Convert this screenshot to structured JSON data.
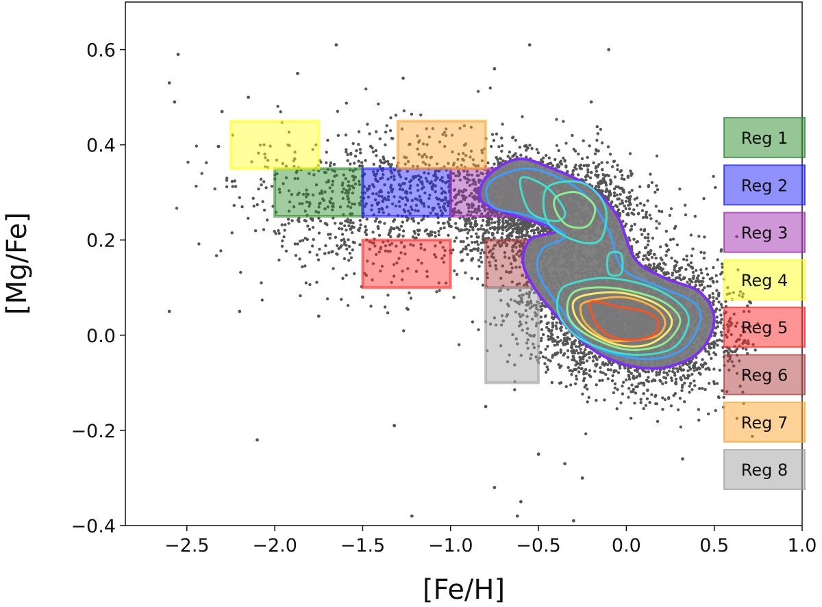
{
  "chart_data": {
    "type": "scatter",
    "title": "",
    "xlabel": "[Fe/H]",
    "ylabel": "[Mg/Fe]",
    "xlim": [
      -2.85,
      1.0
    ],
    "ylim": [
      -0.4,
      0.7
    ],
    "x_ticks": [
      -2.5,
      -2.0,
      -1.5,
      -1.0,
      -0.5,
      0.0,
      0.5,
      1.0
    ],
    "x_tick_labels": [
      "−2.5",
      "−2.0",
      "−1.5",
      "−1.0",
      "−0.5",
      "0.0",
      "0.5",
      "1.0"
    ],
    "y_ticks": [
      -0.4,
      -0.2,
      0.0,
      0.2,
      0.4,
      0.6
    ],
    "y_tick_labels": [
      "−0.4",
      "−0.2",
      "0.0",
      "0.2",
      "0.4",
      "0.6"
    ],
    "grid": false,
    "legend_position": "right",
    "scatter_color": "#555555",
    "scatter_main_cloud": {
      "center": [
        -0.3,
        0.2
      ],
      "spread": [
        0.45,
        0.15
      ],
      "count": 7000
    },
    "scatter_isolated_points": [
      [
        -2.55,
        0.59
      ],
      [
        -2.6,
        0.53
      ],
      [
        -2.57,
        0.49
      ],
      [
        -2.6,
        0.05
      ],
      [
        -2.1,
        -0.22
      ],
      [
        -1.87,
        0.55
      ],
      [
        -1.65,
        0.61
      ],
      [
        -1.32,
        -0.19
      ],
      [
        -1.27,
        0.54
      ],
      [
        -1.22,
        -0.38
      ],
      [
        -0.75,
        0.56
      ],
      [
        -0.7,
        0.03
      ],
      [
        -0.55,
        0.61
      ],
      [
        -0.5,
        -0.25
      ],
      [
        -0.62,
        -0.38
      ],
      [
        -0.2,
        0.49
      ],
      [
        -0.35,
        -0.27
      ],
      [
        -0.25,
        -0.3
      ],
      [
        -0.1,
        0.6
      ],
      [
        0.32,
        -0.26
      ],
      [
        -0.75,
        -0.32
      ],
      [
        -0.6,
        -0.35
      ],
      [
        -0.8,
        -0.15
      ],
      [
        -0.3,
        -0.39
      ],
      [
        -2.2,
        0.05
      ],
      [
        -1.75,
        0.04
      ],
      [
        -1.5,
        0.08
      ],
      [
        -2.3,
        0.47
      ],
      [
        -2.15,
        0.5
      ]
    ],
    "regions": [
      {
        "name": "Reg 1",
        "color": "#2e8b2e",
        "x": [
          -2.0,
          -1.5
        ],
        "y": [
          0.25,
          0.35
        ]
      },
      {
        "name": "Reg 2",
        "color": "#2222ff",
        "x": [
          -1.5,
          -1.0
        ],
        "y": [
          0.25,
          0.35
        ]
      },
      {
        "name": "Reg 3",
        "color": "#a030b0",
        "x": [
          -1.0,
          -0.5
        ],
        "y": [
          0.25,
          0.35
        ]
      },
      {
        "name": "Reg 4",
        "color": "#ffff22",
        "x": [
          -2.25,
          -1.75
        ],
        "y": [
          0.35,
          0.45
        ]
      },
      {
        "name": "Reg 5",
        "color": "#ff2a2a",
        "x": [
          -1.5,
          -1.0
        ],
        "y": [
          0.1,
          0.2
        ]
      },
      {
        "name": "Reg 6",
        "color": "#b04040",
        "x": [
          -0.8,
          -0.5
        ],
        "y": [
          0.1,
          0.2
        ]
      },
      {
        "name": "Reg 7",
        "color": "#ffa630",
        "x": [
          -1.3,
          -0.8
        ],
        "y": [
          0.35,
          0.45
        ]
      },
      {
        "name": "Reg 8",
        "color": "#a0a0a0",
        "x": [
          -0.8,
          -0.5
        ],
        "y": [
          -0.1,
          0.1
        ]
      }
    ],
    "density_contours": {
      "colors": [
        "#7b2ff7",
        "#3aa0ff",
        "#40e0d0",
        "#90ee90",
        "#f4ec6a",
        "#ffb040",
        "#ff5020"
      ],
      "fill": "#7a7a7a",
      "shapes": [
        {
          "level": 0,
          "color": "#7b2ff7",
          "points": [
            [
              -0.8,
              0.33
            ],
            [
              -0.62,
              0.37
            ],
            [
              -0.42,
              0.35
            ],
            [
              -0.2,
              0.31
            ],
            [
              -0.05,
              0.25
            ],
            [
              0.05,
              0.16
            ],
            [
              0.22,
              0.12
            ],
            [
              0.42,
              0.09
            ],
            [
              0.5,
              0.03
            ],
            [
              0.4,
              -0.04
            ],
            [
              0.15,
              -0.07
            ],
            [
              -0.15,
              -0.04
            ],
            [
              -0.42,
              0.05
            ],
            [
              -0.58,
              0.14
            ],
            [
              -0.55,
              0.2
            ],
            [
              -0.4,
              0.22
            ],
            [
              -0.62,
              0.25
            ],
            [
              -0.82,
              0.28
            ]
          ]
        },
        {
          "level": 1,
          "color": "#3aa0ff",
          "points": [
            [
              -0.78,
              0.32
            ],
            [
              -0.58,
              0.35
            ],
            [
              -0.38,
              0.33
            ],
            [
              -0.22,
              0.29
            ],
            [
              -0.1,
              0.22
            ],
            [
              -0.02,
              0.14
            ],
            [
              0.2,
              0.1
            ],
            [
              0.38,
              0.07
            ],
            [
              0.42,
              0.03
            ],
            [
              0.32,
              -0.03
            ],
            [
              0.1,
              -0.05
            ],
            [
              -0.2,
              -0.02
            ],
            [
              -0.38,
              0.06
            ],
            [
              -0.5,
              0.13
            ],
            [
              -0.48,
              0.18
            ],
            [
              -0.35,
              0.21
            ],
            [
              -0.55,
              0.25
            ],
            [
              -0.76,
              0.27
            ]
          ]
        },
        {
          "level": 2,
          "color": "#40e0d0",
          "points": [
            [
              -0.6,
              0.33
            ],
            [
              -0.45,
              0.31
            ],
            [
              -0.35,
              0.26
            ],
            [
              -0.4,
              0.24
            ],
            [
              -0.55,
              0.26
            ]
          ]
        },
        {
          "level": 2,
          "color": "#40e0d0",
          "points": [
            [
              -0.45,
              0.31
            ],
            [
              -0.25,
              0.32
            ],
            [
              -0.12,
              0.27
            ],
            [
              -0.15,
              0.2
            ],
            [
              -0.3,
              0.2
            ],
            [
              -0.45,
              0.24
            ]
          ]
        },
        {
          "level": 2,
          "color": "#40e0d0",
          "points": [
            [
              -0.3,
              0.11
            ],
            [
              -0.1,
              0.12
            ],
            [
              0.15,
              0.1
            ],
            [
              0.32,
              0.06
            ],
            [
              0.35,
              0.02
            ],
            [
              0.25,
              -0.03
            ],
            [
              0.0,
              -0.04
            ],
            [
              -0.25,
              -0.01
            ],
            [
              -0.38,
              0.04
            ],
            [
              -0.38,
              0.09
            ]
          ]
        },
        {
          "level": 2,
          "color": "#40e0d0",
          "points": [
            [
              -0.1,
              0.17
            ],
            [
              -0.03,
              0.17
            ],
            [
              -0.03,
              0.13
            ],
            [
              -0.1,
              0.13
            ]
          ]
        },
        {
          "level": 3,
          "color": "#90ee90",
          "points": [
            [
              -0.4,
              0.29
            ],
            [
              -0.28,
              0.3
            ],
            [
              -0.18,
              0.27
            ],
            [
              -0.22,
              0.23
            ],
            [
              -0.33,
              0.23
            ],
            [
              -0.4,
              0.26
            ]
          ]
        },
        {
          "level": 3,
          "color": "#90ee90",
          "points": [
            [
              -0.3,
              0.09
            ],
            [
              -0.1,
              0.1
            ],
            [
              0.15,
              0.08
            ],
            [
              0.28,
              0.05
            ],
            [
              0.3,
              0.02
            ],
            [
              0.2,
              -0.02
            ],
            [
              0.0,
              -0.03
            ],
            [
              -0.22,
              0.0
            ],
            [
              -0.33,
              0.04
            ]
          ]
        },
        {
          "level": 4,
          "color": "#f4ec6a",
          "points": [
            [
              -0.27,
              0.08
            ],
            [
              -0.05,
              0.09
            ],
            [
              0.15,
              0.07
            ],
            [
              0.25,
              0.04
            ],
            [
              0.24,
              0.01
            ],
            [
              0.12,
              -0.02
            ],
            [
              -0.05,
              -0.02
            ],
            [
              -0.22,
              0.01
            ],
            [
              -0.3,
              0.05
            ]
          ]
        },
        {
          "level": 5,
          "color": "#ffb040",
          "points": [
            [
              -0.23,
              0.07
            ],
            [
              -0.02,
              0.08
            ],
            [
              0.15,
              0.06
            ],
            [
              0.22,
              0.03
            ],
            [
              0.18,
              0.0
            ],
            [
              0.05,
              -0.01
            ],
            [
              -0.1,
              -0.01
            ],
            [
              -0.22,
              0.02
            ],
            [
              -0.26,
              0.05
            ]
          ]
        },
        {
          "level": 6,
          "color": "#ff5020",
          "points": [
            [
              -0.2,
              0.07
            ],
            [
              -0.05,
              0.06
            ],
            [
              0.1,
              0.05
            ],
            [
              0.18,
              0.03
            ],
            [
              0.15,
              0.0
            ],
            [
              0.02,
              -0.01
            ],
            [
              -0.1,
              0.0
            ],
            [
              -0.18,
              0.03
            ]
          ]
        }
      ]
    }
  }
}
